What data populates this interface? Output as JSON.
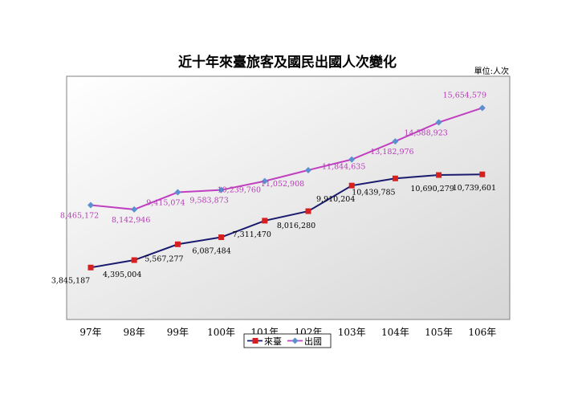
{
  "chart_data": {
    "type": "line",
    "title": "近十年來臺旅客及國民出國人次變化",
    "unit_note": "單位:人次",
    "categories": [
      "97年",
      "98年",
      "99年",
      "100年",
      "101年",
      "102年",
      "103年",
      "104年",
      "105年",
      "106年"
    ],
    "series": [
      {
        "name": "來臺",
        "color": "#1a1a6e",
        "marker_color": "#d62020",
        "marker": "square",
        "values": [
          3845187,
          4395004,
          5567277,
          6087484,
          7311470,
          8016280,
          9910204,
          10439785,
          10690279,
          10739601
        ],
        "labels": [
          "3,845,187",
          "4,395,004",
          "5,567,277",
          "6,087,484",
          "7,311,470",
          "8,016,280",
          "9,910,204",
          "10,439,785",
          "10,690,279",
          "10,739,601"
        ]
      },
      {
        "name": "出國",
        "color": "#c040c0",
        "marker_color": "#5b8fd0",
        "marker": "diamond",
        "values": [
          8465172,
          8142946,
          9415074,
          9583873,
          10239760,
          11052908,
          11844635,
          13182976,
          14588923,
          15654579
        ],
        "labels": [
          "8,465,172",
          "8,142,946",
          "9,415,074",
          "9,583,873",
          "10,239,760",
          "11,052,908",
          "11,844,635",
          "13,182,976",
          "14,588,923",
          "15,654,579"
        ]
      }
    ],
    "ylim": [
      0,
      18000000
    ],
    "grid": false,
    "legend": "bottom"
  }
}
